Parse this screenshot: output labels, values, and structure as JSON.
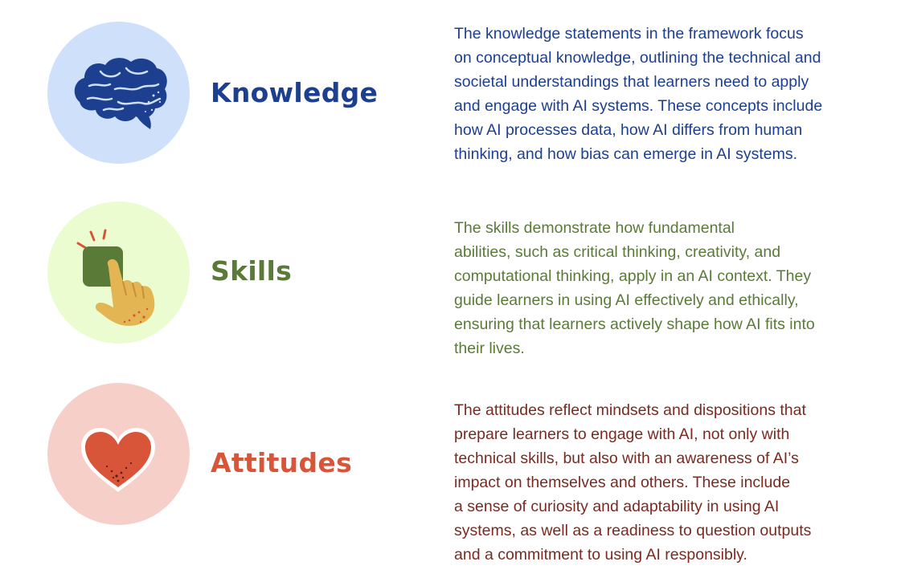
{
  "colors": {
    "knowledge_text": "#1c3f8f",
    "knowledge_circle": "#cfe0fb",
    "skills_text": "#5a7a38",
    "skills_circle": "#eafcd0",
    "attitudes_text": "#d8553a",
    "attitudes_desc": "#7a2a20",
    "attitudes_circle": "#f7cfc9"
  },
  "sections": [
    {
      "icon": "brain-icon",
      "title": "Knowledge",
      "lines": [
        "The knowledge statements in the framework focus",
        "on conceptual knowledge, outlining the technical and",
        "societal understandings that learners need to apply",
        "and engage with AI systems. These concepts include",
        "how AI processes data, how AI differs from human",
        "thinking, and how bias can emerge in AI systems."
      ]
    },
    {
      "icon": "hand-pressing-button-icon",
      "title": "Skills",
      "lines": [
        "The skills demonstrate how fundamental",
        "abilities, such as critical thinking, creativity, and",
        "computational thinking, apply in an AI context. They",
        "guide learners in using AI effectively and ethically,",
        "ensuring that learners actively shape how AI fits into",
        "their lives."
      ]
    },
    {
      "icon": "heart-icon",
      "title": "Attitudes",
      "lines": [
        "The attitudes reflect mindsets and dispositions that",
        "prepare learners to engage with AI, not only with",
        "technical skills, but also with an awareness of AI’s",
        "impact on themselves and others. These include",
        "a sense of curiosity and adaptability in using AI",
        "systems, as well as a readiness to question outputs",
        "and a commitment to using AI responsibly."
      ]
    }
  ]
}
